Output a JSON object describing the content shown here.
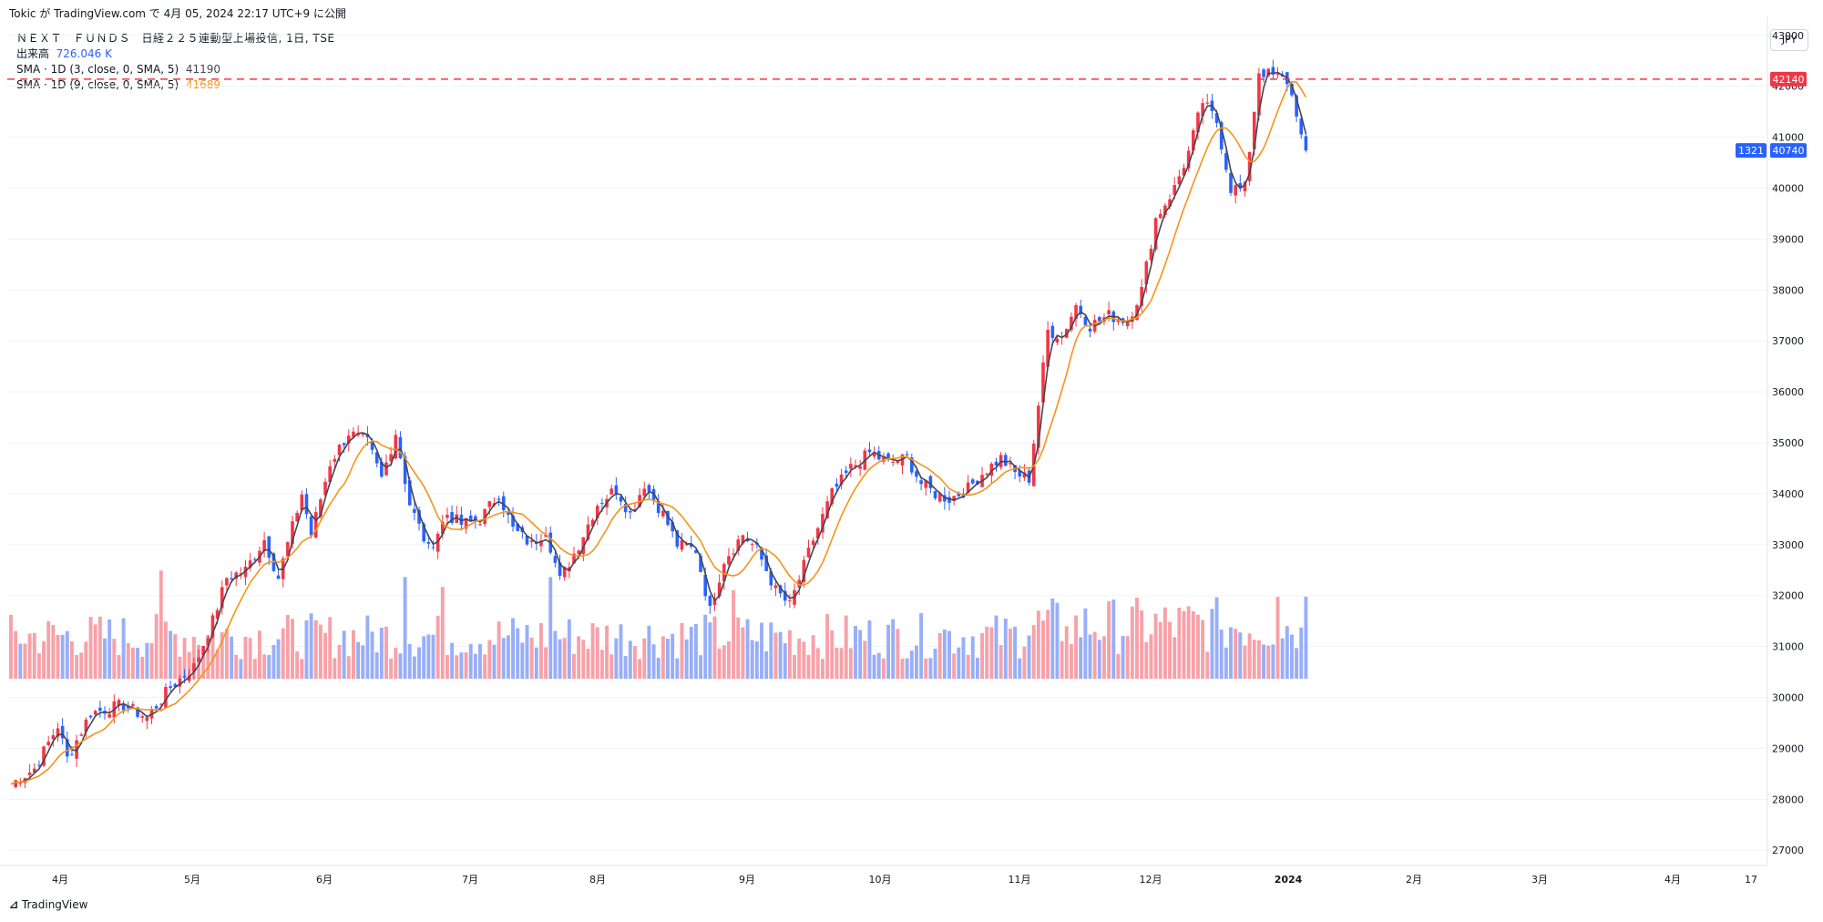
{
  "caption": "Tokic が TradingView.com で 4月 05, 2024 22:17 UTC+9 に公開",
  "legend": {
    "symbol_title": "ＮＥＸＴ　ＦＵＮＤＳ　日経２２５連動型上場投信, 1日, TSE",
    "volume_label": "出来高",
    "volume_value": "726.046 K",
    "sma_short_label": "SMA · 1D (3, close, 0, SMA, 5)",
    "sma_short_value": "41190",
    "sma_long_label": "SMA · 1D (9, close, 0, SMA, 5)",
    "sma_long_value": "41689"
  },
  "currency": "JPY",
  "footer_brand": "TradingView",
  "colors": {
    "up": "#f23645",
    "down": "#2962ff",
    "up_volume": "#f7a1a8",
    "down_volume": "#98aef8",
    "sma_short": "#434651",
    "sma_long": "#f7931a",
    "price_line": "#f23645",
    "last_label": "#2962ff"
  },
  "chart_data": {
    "type": "candlestick",
    "y_ticks": [
      27000,
      28000,
      29000,
      30000,
      31000,
      32000,
      33000,
      34000,
      35000,
      36000,
      37000,
      38000,
      39000,
      40000,
      41000,
      42000,
      43000
    ],
    "ylim": [
      26700,
      43300
    ],
    "x_labels": [
      "4月",
      "5月",
      "6月",
      "7月",
      "8月",
      "9月",
      "10月",
      "11月",
      "12月",
      "2024",
      "2月",
      "3月",
      "4月",
      "17"
    ],
    "horizontal_line": {
      "value": 42140,
      "label": "42140"
    },
    "last_price": {
      "value": 40740,
      "label": "40740",
      "countdown": "1321"
    },
    "waypoints": [
      [
        0,
        28300
      ],
      [
        5,
        28600
      ],
      [
        10,
        29450
      ],
      [
        12,
        28800
      ],
      [
        17,
        29700
      ],
      [
        24,
        29850
      ],
      [
        29,
        29600
      ],
      [
        34,
        30200
      ],
      [
        39,
        30600
      ],
      [
        43,
        31500
      ],
      [
        46,
        32350
      ],
      [
        50,
        32500
      ],
      [
        54,
        33100
      ],
      [
        57,
        32350
      ],
      [
        62,
        34000
      ],
      [
        64,
        33200
      ],
      [
        68,
        34600
      ],
      [
        72,
        35200
      ],
      [
        76,
        35000
      ],
      [
        79,
        34300
      ],
      [
        82,
        35200
      ],
      [
        85,
        33800
      ],
      [
        89,
        32900
      ],
      [
        93,
        33600
      ],
      [
        96,
        33400
      ],
      [
        100,
        33500
      ],
      [
        104,
        34000
      ],
      [
        107,
        33300
      ],
      [
        111,
        33000
      ],
      [
        114,
        33300
      ],
      [
        117,
        32300
      ],
      [
        121,
        33000
      ],
      [
        125,
        33800
      ],
      [
        129,
        34100
      ],
      [
        132,
        33600
      ],
      [
        135,
        34200
      ],
      [
        139,
        33600
      ],
      [
        142,
        33000
      ],
      [
        146,
        32900
      ],
      [
        149,
        31700
      ],
      [
        152,
        32700
      ],
      [
        156,
        33200
      ],
      [
        159,
        32900
      ],
      [
        163,
        32100
      ],
      [
        166,
        31800
      ],
      [
        171,
        33100
      ],
      [
        175,
        34000
      ],
      [
        179,
        34500
      ],
      [
        183,
        34800
      ],
      [
        187,
        34600
      ],
      [
        191,
        34700
      ],
      [
        194,
        34200
      ],
      [
        197,
        34000
      ],
      [
        200,
        33900
      ],
      [
        204,
        34100
      ],
      [
        207,
        34400
      ],
      [
        211,
        34700
      ],
      [
        214,
        34400
      ],
      [
        217,
        34300
      ],
      [
        221,
        37200
      ],
      [
        224,
        37100
      ],
      [
        227,
        37700
      ],
      [
        230,
        37300
      ],
      [
        234,
        37500
      ],
      [
        238,
        37400
      ],
      [
        241,
        38000
      ],
      [
        244,
        39400
      ],
      [
        248,
        40000
      ],
      [
        251,
        40700
      ],
      [
        254,
        41700
      ],
      [
        257,
        41300
      ],
      [
        260,
        40000
      ],
      [
        263,
        40000
      ],
      [
        266,
        42300
      ],
      [
        269,
        42200
      ],
      [
        272,
        42100
      ],
      [
        274,
        41500
      ],
      [
        275,
        41000
      ],
      [
        276,
        40740
      ]
    ],
    "big_volume_bars": [
      [
        32,
        3.3
      ],
      [
        84,
        3.1
      ],
      [
        92,
        2.8
      ],
      [
        115,
        3.1
      ],
      [
        154,
        2.7
      ],
      [
        199,
        1.5
      ],
      [
        225,
        1.6
      ],
      [
        258,
        1.5
      ],
      [
        270,
        2.5
      ],
      [
        276,
        2.5
      ]
    ],
    "bar_count": 277
  }
}
